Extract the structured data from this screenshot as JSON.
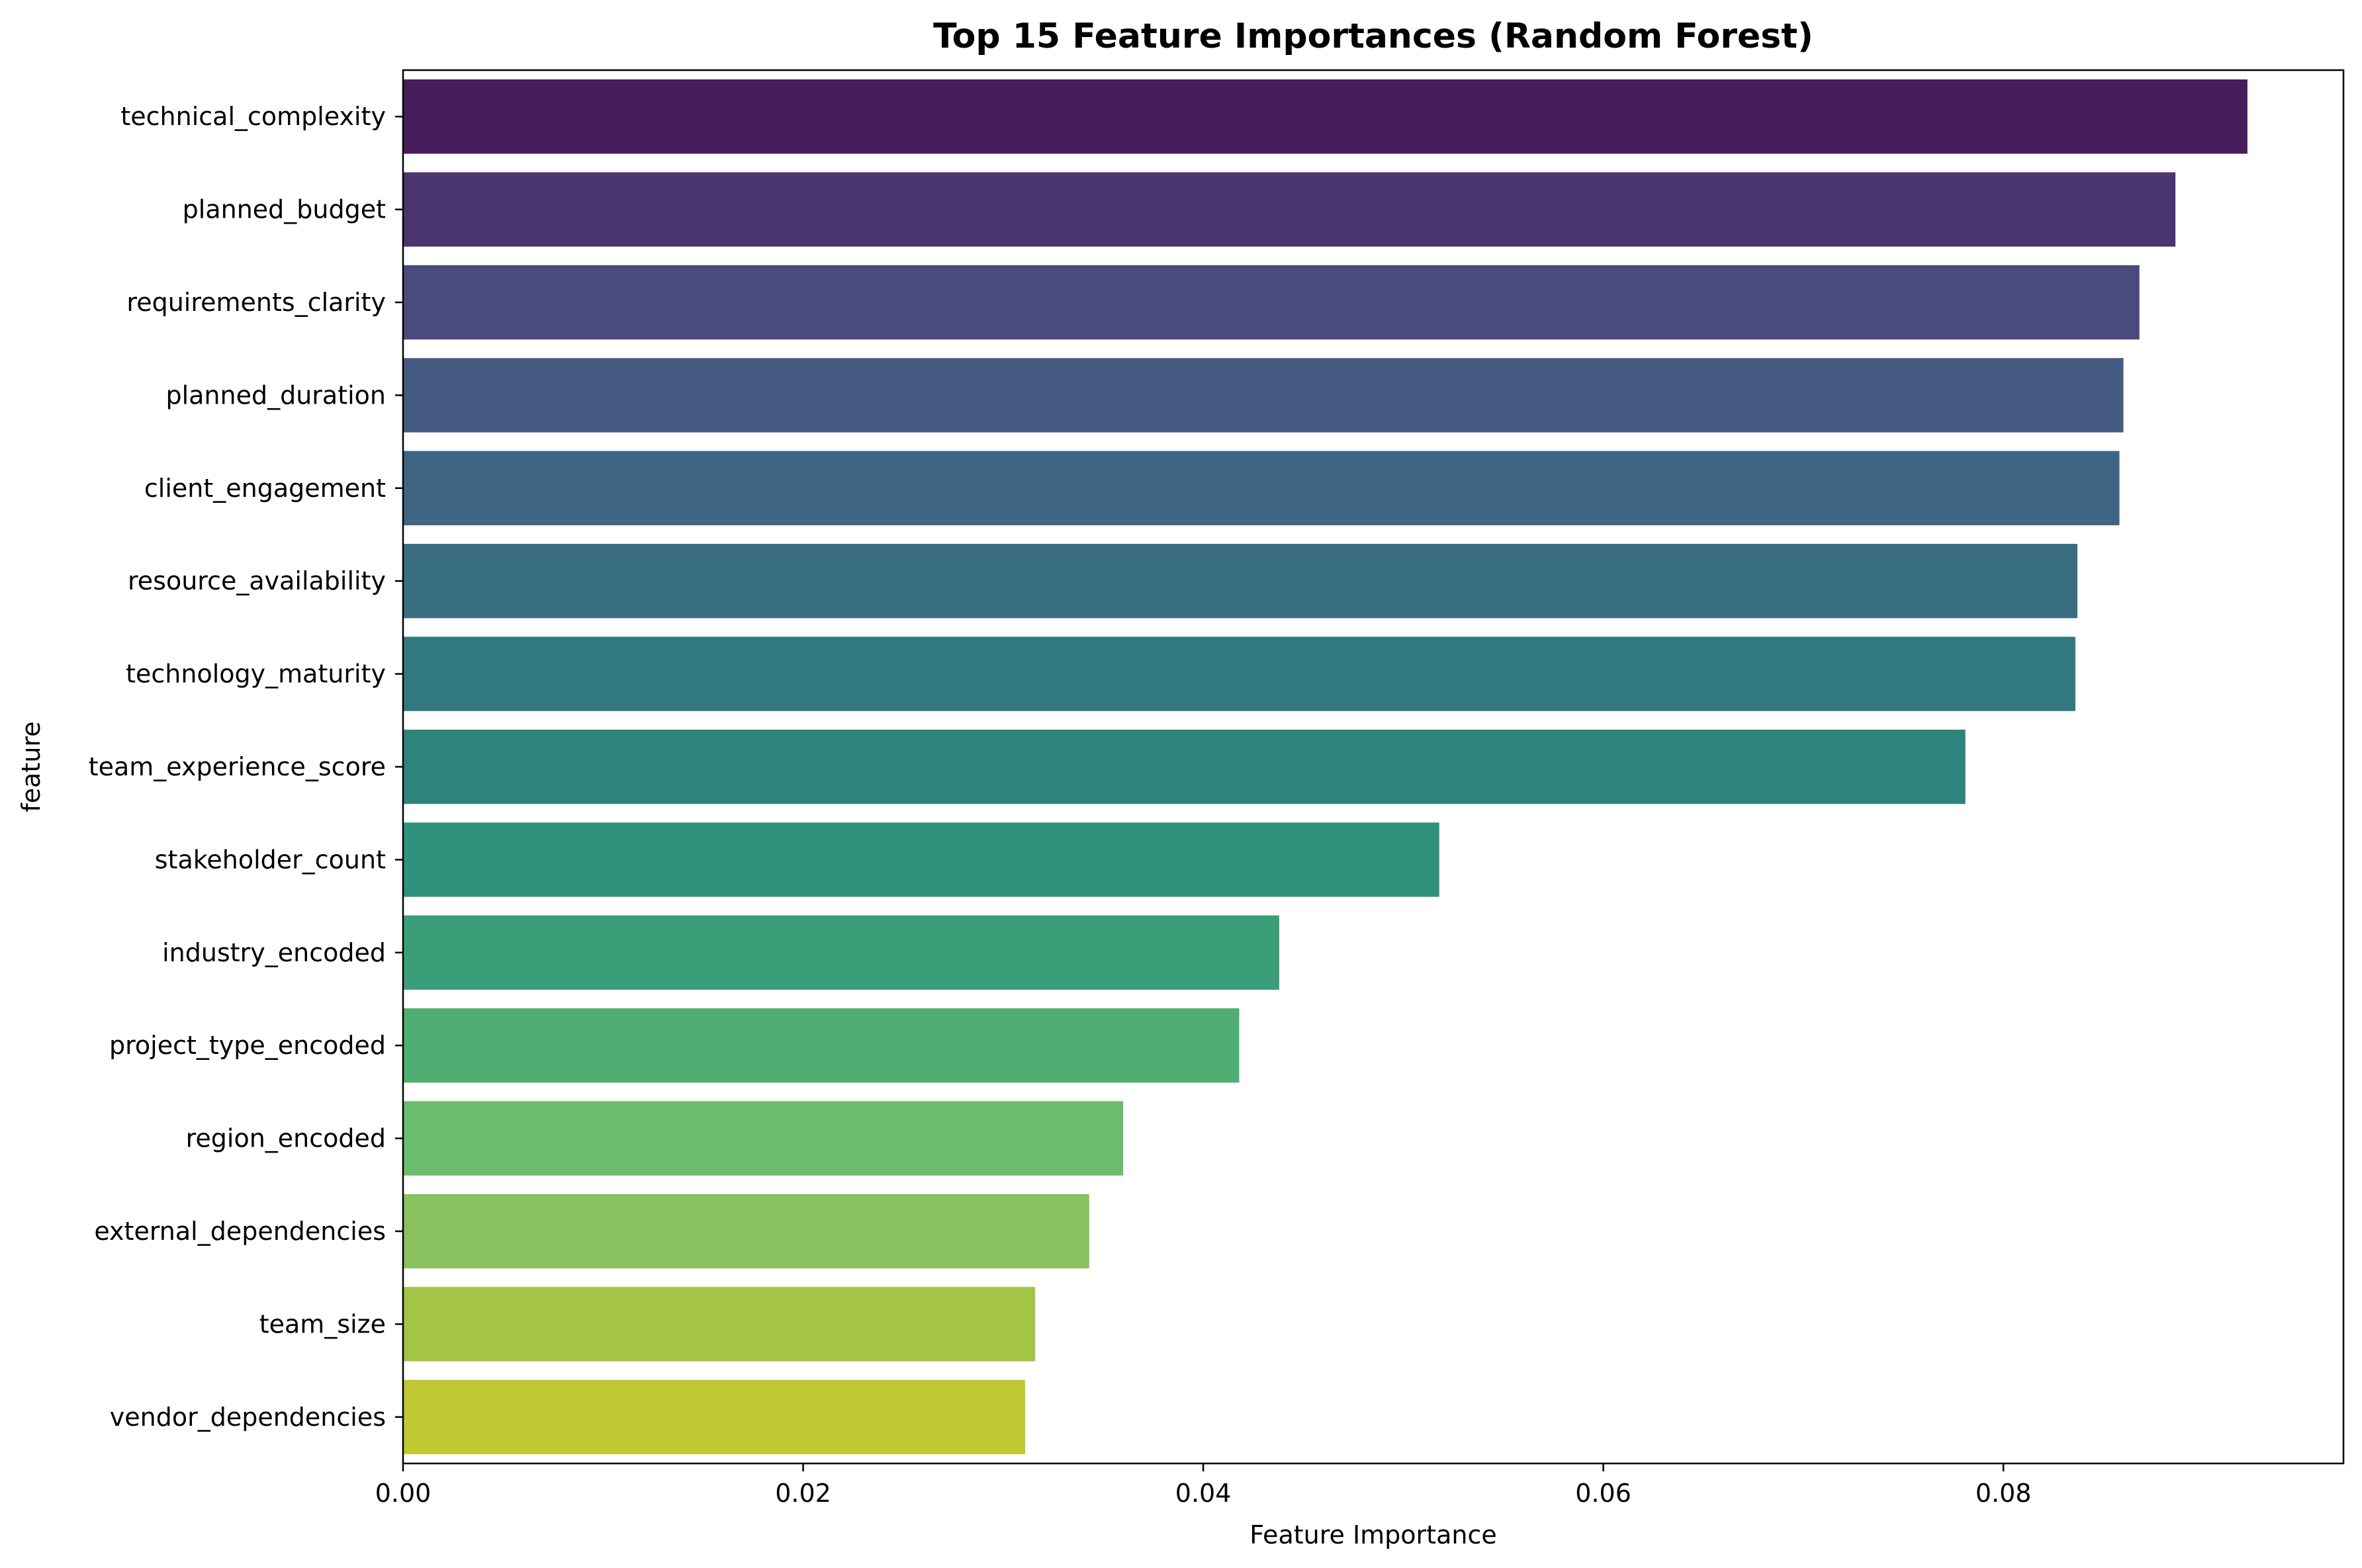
{
  "chart_data": {
    "type": "bar",
    "orientation": "horizontal",
    "title": "Top 15 Feature Importances (Random Forest)",
    "xlabel": "Feature Importance",
    "ylabel": "feature",
    "xlim": [
      0,
      0.097
    ],
    "xticks": [
      0.0,
      0.02,
      0.04,
      0.06,
      0.08
    ],
    "xtick_labels": [
      "0.00",
      "0.02",
      "0.04",
      "0.06",
      "0.08"
    ],
    "grid": false,
    "colormap": "viridis",
    "categories": [
      "technical_complexity",
      "planned_budget",
      "requirements_clarity",
      "planned_duration",
      "client_engagement",
      "resource_availability",
      "technology_maturity",
      "team_experience_score",
      "stakeholder_count",
      "industry_encoded",
      "project_type_encoded",
      "region_encoded",
      "external_dependencies",
      "team_size",
      "vendor_dependencies"
    ],
    "values": [
      0.0922,
      0.0886,
      0.0868,
      0.086,
      0.0858,
      0.0837,
      0.0836,
      0.0781,
      0.0518,
      0.0438,
      0.0418,
      0.036,
      0.0343,
      0.0316,
      0.0311
    ],
    "colors": [
      "#481d5b",
      "#4a3570",
      "#4a4a7e",
      "#455a80",
      "#3f6585",
      "#386e80",
      "#32787f",
      "#2e847c",
      "#2f927d",
      "#3a9f79",
      "#4fae73",
      "#6bbd6b",
      "#88c15e",
      "#a3c447",
      "#c0c932"
    ]
  }
}
